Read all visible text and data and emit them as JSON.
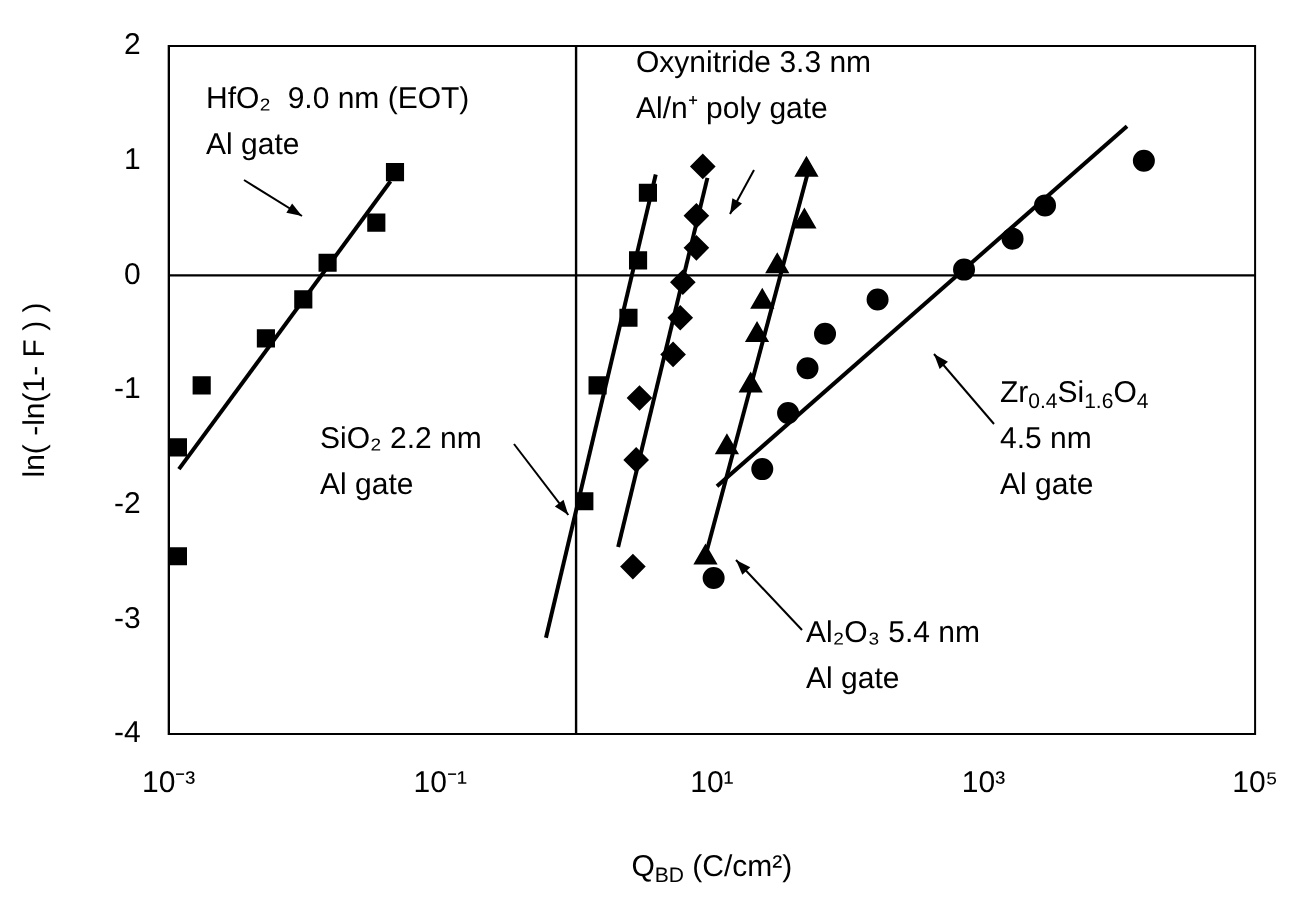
{
  "chart_data": {
    "type": "scatter",
    "xlabel": "Q$_{BD}$ (C/cm²)",
    "ylabel": "ln( -ln(1- F ) )",
    "log": "x",
    "grid": false,
    "legend": false,
    "xlim": [
      0.001,
      100000
    ],
    "ylim": [
      -4,
      2
    ],
    "xticks": [
      {
        "value": 0.001,
        "label": "10⁻³"
      },
      {
        "value": 0.1,
        "label": "10⁻¹"
      },
      {
        "value": 10,
        "label": "10¹"
      },
      {
        "value": 1000,
        "label": "10³"
      },
      {
        "value": 100000,
        "label": "10⁵"
      }
    ],
    "yticks": [
      -4,
      -3,
      -2,
      -1,
      0,
      1,
      2
    ],
    "ref_lines": [
      {
        "axis": "x",
        "value": 1,
        "color": "#000000"
      },
      {
        "axis": "y",
        "value": 0,
        "color": "#000000"
      }
    ],
    "annotations": [
      "HfO₂  9.0 nm (EOT)\nAl gate",
      {
        "text": "SiO₂ 2.2 nm\nAl gate",
        "x": 0.877,
        "y": -2.09
      },
      "Oxynitride 3.3 nm\nAl/n⁺ poly gate",
      "Al₂O₃ 5.4 nm\nAl gate",
      "Zr$_{0.4}$Si$_{1.6}$O$_{4}$\n4.5 nm\nAl gate"
    ],
    "series": [
      {
        "type": "scatter",
        "marker": "square",
        "color": "#000000",
        "x": [
          0.0464,
          0.0338,
          0.0148,
          0.0098,
          0.0052,
          0.00175,
          0.00117,
          0.00117
        ],
        "values": [
          0.9,
          0.46,
          0.11,
          -0.21,
          -0.55,
          -0.96,
          -1.5,
          -2.45
        ]
      },
      {
        "type": "line",
        "marker": "none",
        "line_style": "solid",
        "color": "#000000",
        "x": [
          0.00119,
          0.043
        ],
        "values": [
          -1.69,
          0.82
        ]
      },
      {
        "type": "scatter",
        "marker": "square",
        "color": "#000000",
        "x": [
          3.38,
          2.86,
          2.43,
          1.44,
          1.15
        ],
        "values": [
          0.72,
          0.13,
          -0.37,
          -0.96,
          -1.97
        ]
      },
      {
        "type": "line",
        "marker": "none",
        "line_style": "solid",
        "color": "#000000",
        "x": [
          0.6,
          3.86
        ],
        "values": [
          -3.16,
          0.88
        ]
      },
      {
        "type": "scatter",
        "marker": "diamond",
        "color": "#000000",
        "x": [
          8.57,
          7.69,
          7.69,
          6.11,
          5.85,
          5.18,
          2.93,
          2.77,
          2.62
        ],
        "values": [
          0.95,
          0.52,
          0.24,
          -0.06,
          -0.37,
          -0.69,
          -1.07,
          -1.61,
          -2.54
        ]
      },
      {
        "type": "line",
        "marker": "none",
        "line_style": "solid",
        "color": "#000000",
        "x": [
          2.04,
          9.27
        ],
        "values": [
          -2.37,
          0.85
        ]
      },
      {
        "type": "scatter",
        "marker": "triangle",
        "color": "#000000",
        "x": [
          49.7,
          48,
          30.3,
          23.5,
          21.5,
          19.3,
          12.9,
          8.97
        ],
        "values": [
          0.92,
          0.47,
          0.08,
          -0.23,
          -0.52,
          -0.96,
          -1.5,
          -2.46
        ]
      },
      {
        "type": "line",
        "marker": "none",
        "line_style": "solid",
        "color": "#000000",
        "x": [
          8.77,
          51.8
        ],
        "values": [
          -2.49,
          0.93
        ]
      },
      {
        "type": "scatter",
        "marker": "circle",
        "color": "#000000",
        "x": [
          10.3,
          23.5,
          36.4,
          50.6,
          68.1,
          166,
          719,
          1637,
          2838,
          15170
        ],
        "values": [
          -2.64,
          -1.69,
          -1.2,
          -0.81,
          -0.51,
          -0.21,
          0.05,
          0.32,
          0.61,
          1.0
        ]
      },
      {
        "type": "line",
        "marker": "none",
        "line_style": "solid",
        "color": "#000000",
        "x": [
          10.9,
          11400
        ],
        "values": [
          -1.84,
          1.3
        ]
      }
    ]
  }
}
